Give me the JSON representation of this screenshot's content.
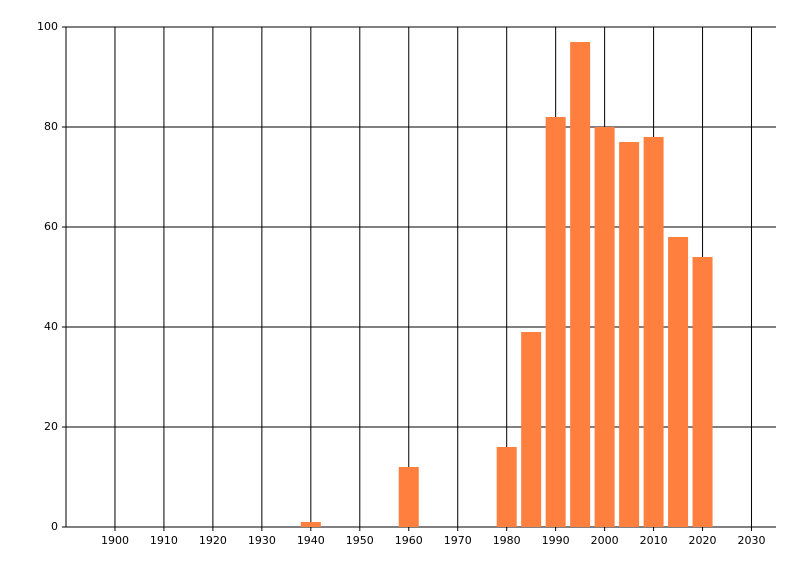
{
  "chart_data": {
    "type": "bar",
    "x": [
      1940,
      1960,
      1980,
      1985,
      1990,
      1995,
      2000,
      2005,
      2010,
      2015,
      2020
    ],
    "values": [
      1,
      12,
      16,
      39,
      82,
      97,
      80,
      77,
      78,
      58,
      54
    ],
    "color": "#ff7f3f",
    "xlim": [
      1890,
      2035
    ],
    "xticks": [
      1900,
      1910,
      1920,
      1930,
      1940,
      1950,
      1960,
      1970,
      1980,
      1990,
      2000,
      2010,
      2020,
      2030
    ],
    "ylim": [
      0,
      100
    ],
    "yticks": [
      0,
      20,
      40,
      60,
      80,
      100
    ],
    "grid": true
  }
}
